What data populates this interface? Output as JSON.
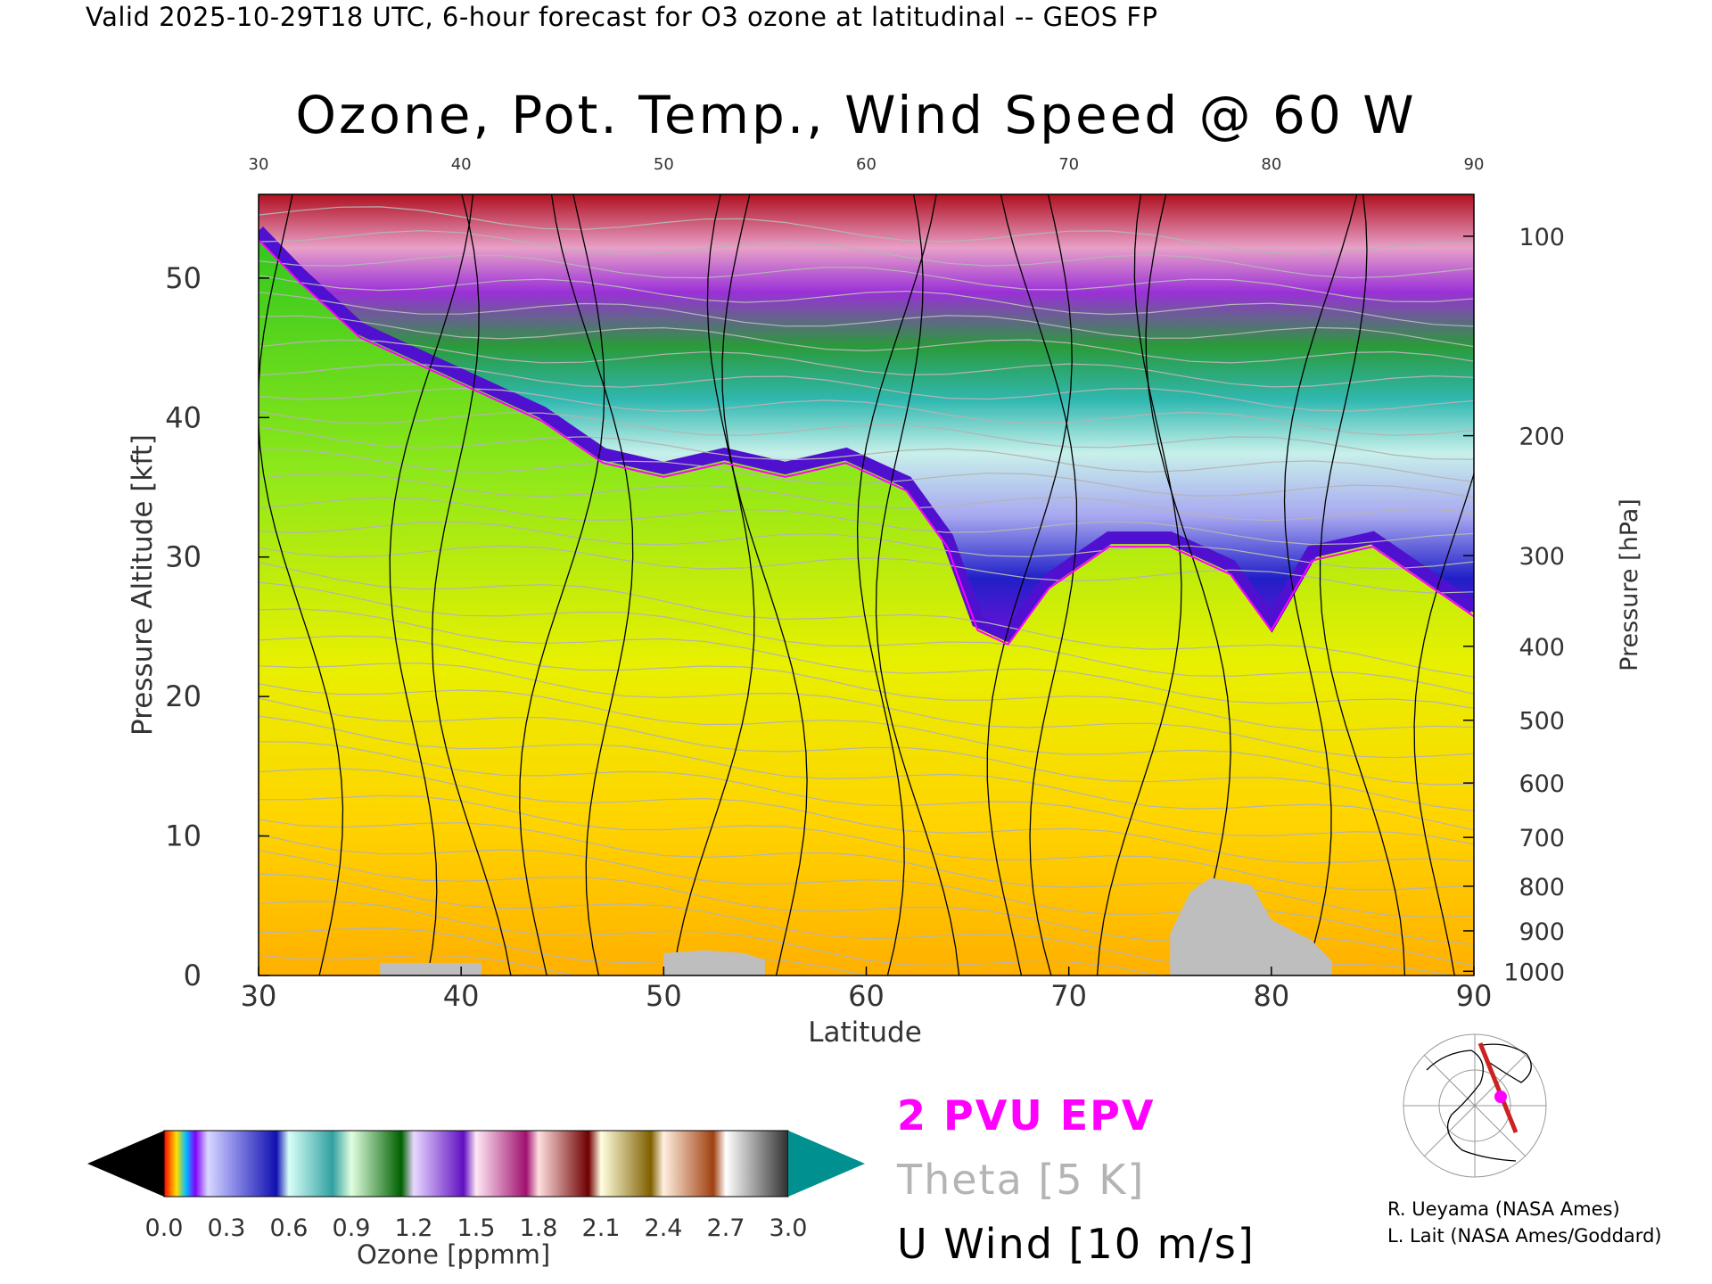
{
  "header": {
    "valid_line": "Valid 2025-10-29T18 UTC, 6-hour forecast for O3 ozone at latitudinal -- GEOS FP"
  },
  "chart_data": {
    "type": "heatmap",
    "title": "Ozone, Pot. Temp., Wind Speed @ 60 W",
    "xlabel": "Latitude",
    "ylabel_left": "Pressure Altitude [kft]",
    "ylabel_right": "Pressure [hPa]",
    "xlim": [
      30,
      90
    ],
    "ylim": [
      0,
      56
    ],
    "x_ticks": [
      30,
      40,
      50,
      60,
      70,
      80,
      90
    ],
    "x_ticks_top": [
      30,
      40,
      50,
      60,
      70,
      80,
      90
    ],
    "y_ticks_left": [
      0,
      10,
      20,
      30,
      40,
      50
    ],
    "y_ticks_right": [
      {
        "label": "100",
        "kft": 53.0
      },
      {
        "label": "200",
        "kft": 38.7
      },
      {
        "label": "300",
        "kft": 30.1
      },
      {
        "label": "400",
        "kft": 23.6
      },
      {
        "label": "500",
        "kft": 18.3
      },
      {
        "label": "600",
        "kft": 13.8
      },
      {
        "label": "700",
        "kft": 9.9
      },
      {
        "label": "800",
        "kft": 6.4
      },
      {
        "label": "900",
        "kft": 3.2
      },
      {
        "label": "1000",
        "kft": 0.3
      }
    ],
    "tropopause_kft": [
      {
        "lat": 30,
        "kft": 53
      },
      {
        "lat": 32,
        "kft": 50
      },
      {
        "lat": 35,
        "kft": 46
      },
      {
        "lat": 38,
        "kft": 44
      },
      {
        "lat": 41,
        "kft": 42
      },
      {
        "lat": 44,
        "kft": 40
      },
      {
        "lat": 47,
        "kft": 37
      },
      {
        "lat": 50,
        "kft": 36
      },
      {
        "lat": 53,
        "kft": 37
      },
      {
        "lat": 56,
        "kft": 36
      },
      {
        "lat": 59,
        "kft": 37
      },
      {
        "lat": 62,
        "kft": 35
      },
      {
        "lat": 64,
        "kft": 31
      },
      {
        "lat": 65.5,
        "kft": 25
      },
      {
        "lat": 67,
        "kft": 24
      },
      {
        "lat": 69,
        "kft": 28
      },
      {
        "lat": 72,
        "kft": 31
      },
      {
        "lat": 75,
        "kft": 31
      },
      {
        "lat": 78,
        "kft": 29
      },
      {
        "lat": 80,
        "kft": 25
      },
      {
        "lat": 82,
        "kft": 30
      },
      {
        "lat": 85,
        "kft": 31
      },
      {
        "lat": 88,
        "kft": 28
      },
      {
        "lat": 90,
        "kft": 26
      }
    ],
    "terrain_kft": [
      {
        "lat": 36,
        "kft": 0.9
      },
      {
        "lat": 41,
        "kft": 0.9
      },
      {
        "lat": 50,
        "kft": 1.6
      },
      {
        "lat": 52,
        "kft": 1.8
      },
      {
        "lat": 54,
        "kft": 1.6
      },
      {
        "lat": 55,
        "kft": 1.1
      },
      {
        "lat": 75,
        "kft": 3
      },
      {
        "lat": 76,
        "kft": 6
      },
      {
        "lat": 77,
        "kft": 7
      },
      {
        "lat": 79,
        "kft": 6.5
      },
      {
        "lat": 80,
        "kft": 4
      },
      {
        "lat": 82,
        "kft": 2.5
      },
      {
        "lat": 83,
        "kft": 1
      }
    ],
    "colorbar": {
      "label": "Ozone [ppmm]",
      "ticks": [
        "0.0",
        "0.3",
        "0.6",
        "0.9",
        "1.2",
        "1.5",
        "1.8",
        "2.1",
        "2.4",
        "2.7",
        "3.0"
      ],
      "min": 0,
      "max": 3
    },
    "legend": {
      "epv": "2 PVU EPV",
      "theta": "Theta [5 K]",
      "uwind": "U Wind [10 m/s]"
    },
    "colors": {
      "epv": "#ff00ff",
      "theta": "#b4b4b4",
      "uwind": "#000000",
      "terrain": "#bebebe"
    }
  },
  "credits": {
    "line1": "R. Ueyama (NASA Ames)",
    "line2": "L. Lait (NASA Ames/Goddard)"
  },
  "inset_map": {
    "marker_color": "#ff00ff",
    "section_color": "#cc2222"
  }
}
